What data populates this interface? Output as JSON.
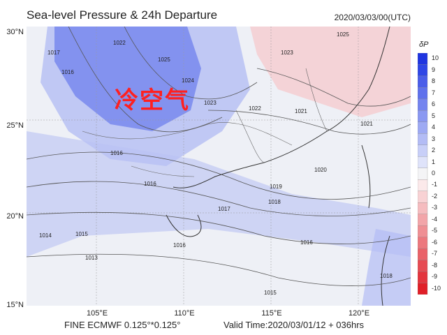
{
  "header": {
    "title": "Sea-level Pressure & 24h Departure",
    "init_time": "2020/03/03/00(UTC)"
  },
  "map": {
    "lat_ticks": [
      "30°N",
      "25°N",
      "20°N",
      "15°N"
    ],
    "lon_ticks": [
      "105°E",
      "110°E",
      "115°E",
      "120°E"
    ],
    "annotation": "冷空气",
    "isobar_labels": [
      "1017",
      "1018",
      "1016",
      "1015",
      "1019",
      "1020",
      "1021",
      "1022",
      "1023",
      "1024",
      "1025",
      "1014",
      "1013"
    ]
  },
  "colorbar": {
    "title": "δP",
    "labels": [
      "10",
      "9",
      "8",
      "7",
      "6",
      "5",
      "4",
      "3",
      "2",
      "1",
      "0",
      "-1",
      "-2",
      "-3",
      "-4",
      "-5",
      "-6",
      "-7",
      "-8",
      "-9",
      "-10"
    ],
    "colors": [
      "#1f35e0",
      "#2f46e6",
      "#4a5de9",
      "#5f71ec",
      "#7484ef",
      "#8a98f1",
      "#9eaaf3",
      "#b3bcf5",
      "#c8cff8",
      "#dfe3fa",
      "#f4f4f6",
      "#fbe9ea",
      "#f8d2d4",
      "#f5bcbf",
      "#f2a5a9",
      "#ef8f94",
      "#ec787e",
      "#e96269",
      "#e64b53",
      "#e3353e",
      "#e01f28"
    ]
  },
  "footer": {
    "model": "FINE ECMWF 0.125°*0.125°",
    "valid": "Valid Time:2020/03/01/12 + 036hrs"
  }
}
